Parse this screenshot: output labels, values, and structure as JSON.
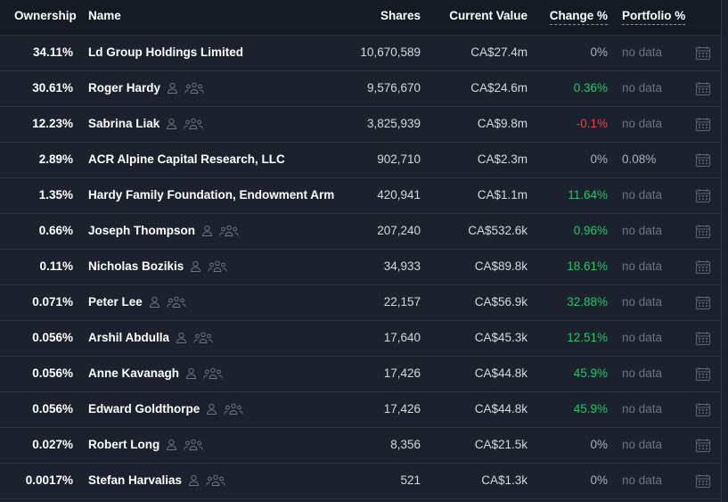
{
  "headers": {
    "ownership": "Ownership",
    "name": "Name",
    "shares": "Shares",
    "current_value": "Current Value",
    "change_pct": "Change %",
    "portfolio_pct": "Portfolio %"
  },
  "rows": [
    {
      "ownership": "34.11%",
      "name": "Ld Group Holdings Limited",
      "is_person": false,
      "shares": "10,670,589",
      "value": "CA$27.4m",
      "change": "0%",
      "change_trend": "neutral",
      "portfolio": "no data"
    },
    {
      "ownership": "30.61%",
      "name": "Roger Hardy",
      "is_person": true,
      "shares": "9,576,670",
      "value": "CA$24.6m",
      "change": "0.36%",
      "change_trend": "positive",
      "portfolio": "no data"
    },
    {
      "ownership": "12.23%",
      "name": "Sabrina Liak",
      "is_person": true,
      "shares": "3,825,939",
      "value": "CA$9.8m",
      "change": "-0.1%",
      "change_trend": "negative",
      "portfolio": "no data"
    },
    {
      "ownership": "2.89%",
      "name": "ACR Alpine Capital Research, LLC",
      "is_person": false,
      "shares": "902,710",
      "value": "CA$2.3m",
      "change": "0%",
      "change_trend": "neutral",
      "portfolio": "0.08%"
    },
    {
      "ownership": "1.35%",
      "name": "Hardy Family Foundation, Endowment Arm",
      "is_person": false,
      "shares": "420,941",
      "value": "CA$1.1m",
      "change": "11.64%",
      "change_trend": "positive",
      "portfolio": "no data"
    },
    {
      "ownership": "0.66%",
      "name": "Joseph Thompson",
      "is_person": true,
      "shares": "207,240",
      "value": "CA$532.6k",
      "change": "0.96%",
      "change_trend": "positive",
      "portfolio": "no data"
    },
    {
      "ownership": "0.11%",
      "name": "Nicholas Bozikis",
      "is_person": true,
      "shares": "34,933",
      "value": "CA$89.8k",
      "change": "18.61%",
      "change_trend": "positive",
      "portfolio": "no data"
    },
    {
      "ownership": "0.071%",
      "name": "Peter Lee",
      "is_person": true,
      "shares": "22,157",
      "value": "CA$56.9k",
      "change": "32.88%",
      "change_trend": "positive",
      "portfolio": "no data"
    },
    {
      "ownership": "0.056%",
      "name": "Arshil Abdulla",
      "is_person": true,
      "shares": "17,640",
      "value": "CA$45.3k",
      "change": "12.51%",
      "change_trend": "positive",
      "portfolio": "no data"
    },
    {
      "ownership": "0.056%",
      "name": "Anne Kavanagh",
      "is_person": true,
      "shares": "17,426",
      "value": "CA$44.8k",
      "change": "45.9%",
      "change_trend": "positive",
      "portfolio": "no data"
    },
    {
      "ownership": "0.056%",
      "name": "Edward Goldthorpe",
      "is_person": true,
      "shares": "17,426",
      "value": "CA$44.8k",
      "change": "45.9%",
      "change_trend": "positive",
      "portfolio": "no data"
    },
    {
      "ownership": "0.027%",
      "name": "Robert Long",
      "is_person": true,
      "shares": "8,356",
      "value": "CA$21.5k",
      "change": "0%",
      "change_trend": "neutral",
      "portfolio": "no data"
    },
    {
      "ownership": "0.0017%",
      "name": "Stefan Harvalias",
      "is_person": true,
      "shares": "521",
      "value": "CA$1.3k",
      "change": "0%",
      "change_trend": "neutral",
      "portfolio": "no data"
    }
  ],
  "icons": {
    "person": "person-icon",
    "group": "people-group-icon",
    "calendar": "calendar-icon"
  },
  "colors": {
    "background": "#1b222d",
    "header_background": "#151b24",
    "positive": "#2bc46c",
    "negative": "#e8434c",
    "muted": "#6c7585"
  }
}
